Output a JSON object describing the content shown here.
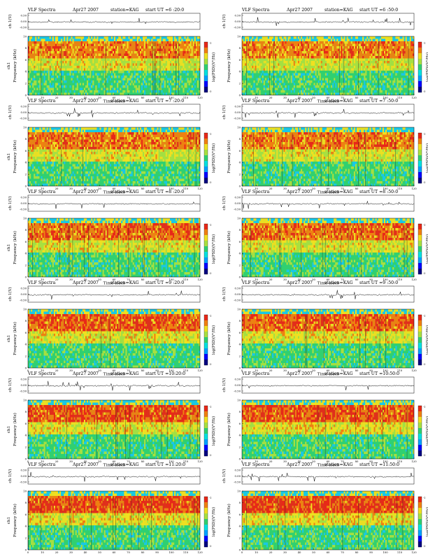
{
  "page": {
    "rows": 6,
    "cols": 2
  },
  "colors": {
    "spectrogram_low": "#18c8e8",
    "spectrogram_mid": "#30d070",
    "spectrogram_mid2": "#a8e040",
    "spectrogram_high": "#f0e020",
    "spectrogram_peak": "#e82818",
    "colorbar": [
      "#000080",
      "#0000ff",
      "#00a0ff",
      "#00e0e0",
      "#30d070",
      "#a8e040",
      "#f0e020",
      "#f08010",
      "#e82818"
    ]
  },
  "chart_data": [
    {
      "type": "heatmap",
      "title": "VLF Spectra",
      "date": "Apr27 2007",
      "station": "station=KAG",
      "start": "start  UT =6 :20:0",
      "top_ylabel": "ch 1(V)",
      "top_yticks": [
        "0.50",
        "0.00",
        "-0.50"
      ],
      "ylabel": "ch1\nFrequency (kHz)",
      "xlabel": "Time (sec)",
      "xlim": [
        0,
        120
      ],
      "ylim": [
        0,
        10
      ],
      "xticks": [
        0,
        10,
        20,
        30,
        40,
        50,
        60,
        70,
        80,
        90,
        100,
        110,
        120
      ],
      "yticks": [
        0,
        2,
        4,
        6,
        8,
        10
      ],
      "colorbar_label": "log(PSD)(V²/Hz)",
      "colorbar_ticks": [
        "-1",
        "-3"
      ]
    },
    {
      "type": "heatmap",
      "title": "VLF Spectra",
      "date": "Apr27 2007",
      "station": "station=KAG",
      "start": "start  UT =6 :50:0",
      "top_ylabel": "ch 1(V)",
      "top_yticks": [
        "0.50",
        "0.00",
        "-0.50"
      ],
      "ylabel": "Frequency (kHz)",
      "xlabel": "Time (sec)",
      "xlim": [
        0,
        120
      ],
      "ylim": [
        0,
        10
      ],
      "xticks": [
        0,
        10,
        20,
        30,
        40,
        50,
        60,
        70,
        80,
        90,
        100,
        110,
        120
      ],
      "yticks": [
        0,
        2,
        4,
        6,
        8,
        10
      ],
      "colorbar_label": "log(PSD)(V²/Hz)",
      "colorbar_ticks": [
        "-1",
        "-3"
      ]
    },
    {
      "type": "heatmap",
      "title": "VLF Spectra",
      "date": "Apr27 2007",
      "station": "station=KAG",
      "start": "start  UT =7 :20:0",
      "top_ylabel": "ch 1(V)",
      "top_yticks": [
        "0.50",
        "0.00",
        "-0.50"
      ],
      "ylabel": "ch1\nFrequency (kHz)",
      "xlabel": "Time (sec)",
      "xlim": [
        0,
        120
      ],
      "ylim": [
        0,
        10
      ],
      "xticks": [
        0,
        10,
        20,
        30,
        40,
        50,
        60,
        70,
        80,
        90,
        100,
        110,
        120
      ],
      "yticks": [
        0,
        2,
        4,
        6,
        8,
        10
      ],
      "colorbar_label": "log(PSD)(V²/Hz)",
      "colorbar_ticks": [
        "-1",
        "-3"
      ]
    },
    {
      "type": "heatmap",
      "title": "VLF Spectra",
      "date": "Apr27 2007",
      "station": "station=KAG",
      "start": "start  UT =7 :50:0",
      "top_ylabel": "ch 1(V)",
      "top_yticks": [
        "0.50",
        "0.00",
        "-0.50"
      ],
      "ylabel": "Frequency (kHz)",
      "xlabel": "Time (sec)",
      "xlim": [
        0,
        120
      ],
      "ylim": [
        0,
        10
      ],
      "xticks": [
        0,
        10,
        20,
        30,
        40,
        50,
        60,
        70,
        80,
        90,
        100,
        110,
        120
      ],
      "yticks": [
        0,
        2,
        4,
        6,
        8,
        10
      ],
      "colorbar_label": "log(PSD)(V²/Hz)",
      "colorbar_ticks": [
        "-1",
        "-3"
      ]
    },
    {
      "type": "heatmap",
      "title": "VLF Spectra",
      "date": "Apr27 2007",
      "station": "station=KAG",
      "start": "start  UT =8 :20:0",
      "top_ylabel": "ch 1(V)",
      "top_yticks": [
        "0.50",
        "0.00",
        "-0.50"
      ],
      "ylabel": "ch1\nFrequency (kHz)",
      "xlabel": "Time (sec)",
      "xlim": [
        0,
        120
      ],
      "ylim": [
        0,
        10
      ],
      "xticks": [
        0,
        10,
        20,
        30,
        40,
        50,
        60,
        70,
        80,
        90,
        100,
        110,
        120
      ],
      "yticks": [
        0,
        2,
        4,
        6,
        8,
        10
      ],
      "colorbar_label": "log(PSD)(V²/Hz)",
      "colorbar_ticks": [
        "-1",
        "-3"
      ]
    },
    {
      "type": "heatmap",
      "title": "VLF Spectra",
      "date": "Apr27 2007",
      "station": "station=KAG",
      "start": "start  UT =8 :50:0",
      "top_ylabel": "ch 1(V)",
      "top_yticks": [
        "0.50",
        "0.00",
        "-0.50"
      ],
      "ylabel": "Frequency (kHz)",
      "xlabel": "Time (sec)",
      "xlim": [
        0,
        120
      ],
      "ylim": [
        0,
        10
      ],
      "xticks": [
        0,
        10,
        20,
        30,
        40,
        50,
        60,
        70,
        80,
        90,
        100,
        110,
        120
      ],
      "yticks": [
        0,
        2,
        4,
        6,
        8,
        10
      ],
      "colorbar_label": "log(PSD)(V²/Hz)",
      "colorbar_ticks": [
        "-1",
        "-3"
      ]
    },
    {
      "type": "heatmap",
      "title": "VLF Spectra",
      "date": "Apr27 2007",
      "station": "station=KAG",
      "start": "start  UT =9 :20:0",
      "top_ylabel": "ch 1(V)",
      "top_yticks": [
        "0.50",
        "0.00",
        "-0.50"
      ],
      "ylabel": "ch1\nFrequency (kHz)",
      "xlabel": "Time (sec)",
      "xlim": [
        0,
        120
      ],
      "ylim": [
        0,
        10
      ],
      "xticks": [
        0,
        10,
        20,
        30,
        40,
        50,
        60,
        70,
        80,
        90,
        100,
        110,
        120
      ],
      "yticks": [
        0,
        2,
        4,
        6,
        8,
        10
      ],
      "colorbar_label": "log(PSD)(V²/Hz)",
      "colorbar_ticks": [
        "-1",
        "-3"
      ]
    },
    {
      "type": "heatmap",
      "title": "VLF Spectra",
      "date": "Apr27 2007",
      "station": "station=KAG",
      "start": "start  UT =9 :50:0",
      "top_ylabel": "ch 1(V)",
      "top_yticks": [
        "0.50",
        "0.00",
        "-0.50"
      ],
      "ylabel": "Frequency (kHz)",
      "xlabel": "Time (sec)",
      "xlim": [
        0,
        120
      ],
      "ylim": [
        0,
        10
      ],
      "xticks": [
        0,
        10,
        20,
        30,
        40,
        50,
        60,
        70,
        80,
        90,
        100,
        110,
        120
      ],
      "yticks": [
        0,
        2,
        4,
        6,
        8,
        10
      ],
      "colorbar_label": "log(PSD)(V²/Hz)",
      "colorbar_ticks": [
        "-1",
        "-3"
      ]
    },
    {
      "type": "heatmap",
      "title": "VLF Spectra",
      "date": "Apr27 2007",
      "station": "station=KAG",
      "start": "start  UT =10:20:0",
      "top_ylabel": "ch 1(V)",
      "top_yticks": [
        "0.50",
        "0.00",
        "-0.50"
      ],
      "ylabel": "ch1\nFrequency (kHz)",
      "xlabel": "Time (sec)",
      "xlim": [
        0,
        120
      ],
      "ylim": [
        0,
        10
      ],
      "xticks": [
        0,
        10,
        20,
        30,
        40,
        50,
        60,
        70,
        80,
        90,
        100,
        110,
        120
      ],
      "yticks": [
        0,
        2,
        4,
        6,
        8,
        10
      ],
      "colorbar_label": "log(PSD)(V²/Hz)",
      "colorbar_ticks": [
        "-1",
        "-3"
      ]
    },
    {
      "type": "heatmap",
      "title": "VLF Spectra",
      "date": "Apr27 2007",
      "station": "station=KAG",
      "start": "start  UT =10:50:0",
      "top_ylabel": "ch 1(V)",
      "top_yticks": [
        "0.50",
        "0.00",
        "-0.50"
      ],
      "ylabel": "Frequency (kHz)",
      "xlabel": "Time (sec)",
      "xlim": [
        0,
        120
      ],
      "ylim": [
        0,
        10
      ],
      "xticks": [
        0,
        10,
        20,
        30,
        40,
        50,
        60,
        70,
        80,
        90,
        100,
        110,
        120
      ],
      "yticks": [
        0,
        2,
        4,
        6,
        8,
        10
      ],
      "colorbar_label": "log(PSD)(V²/Hz)",
      "colorbar_ticks": [
        "-1",
        "-3"
      ]
    },
    {
      "type": "heatmap",
      "title": "VLF Spectra",
      "date": "Apr27 2007",
      "station": "station=KAG",
      "start": "start  UT =11:20:0",
      "top_ylabel": "ch 1(V)",
      "top_yticks": [
        "0.50",
        "0.00",
        "-0.50"
      ],
      "ylabel": "ch1\nFrequency (kHz)",
      "xlabel": "Time (sec)",
      "xlim": [
        0,
        120
      ],
      "ylim": [
        0,
        10
      ],
      "xticks": [
        0,
        10,
        20,
        30,
        40,
        50,
        60,
        70,
        80,
        90,
        100,
        110,
        120
      ],
      "yticks": [
        0,
        2,
        4,
        6,
        8,
        10
      ],
      "colorbar_label": "log(PSD)(V²/Hz)",
      "colorbar_ticks": [
        "-1",
        "-3"
      ]
    },
    {
      "type": "heatmap",
      "title": "VLF Spectra",
      "date": "Apr27 2007",
      "station": "station=KAG",
      "start": "start  UT =11:50:0",
      "top_ylabel": "ch 1(V)",
      "top_yticks": [
        "0.50",
        "0.00",
        "-0.50"
      ],
      "ylabel": "Frequency (kHz)",
      "xlabel": "Time (sec)",
      "xlim": [
        0,
        120
      ],
      "ylim": [
        0,
        10
      ],
      "xticks": [
        0,
        10,
        20,
        30,
        40,
        50,
        60,
        70,
        80,
        90,
        100,
        110,
        120
      ],
      "yticks": [
        0,
        2,
        4,
        6,
        8,
        10
      ],
      "colorbar_label": "log(PSD)(V²/Hz)",
      "colorbar_ticks": [
        "-1",
        "-3"
      ]
    }
  ]
}
